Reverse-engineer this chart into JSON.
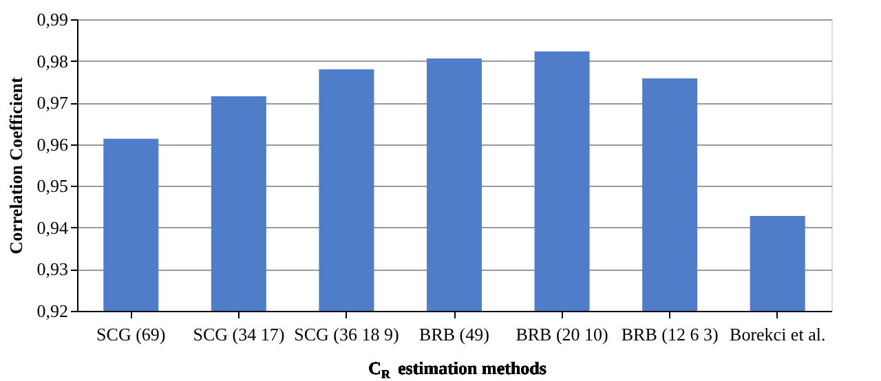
{
  "chart_data": {
    "type": "bar",
    "xlabel": "C$_{R}$ estimation methods",
    "ylabel": "Correlation Coefficient",
    "categories": [
      "SCG (69)",
      "SCG (34 17)",
      "SCG (36 18 9)",
      "BRB (49)",
      "BRB (20 10)",
      "BRB (12 6 3)",
      "Borekci et al."
    ],
    "values": [
      0.9613,
      0.9715,
      0.978,
      0.9806,
      0.9823,
      0.9758,
      0.9428
    ],
    "color": "#4f7dc9",
    "ylim": [
      0.92,
      0.99
    ],
    "yticks": [
      {
        "value": 0.92,
        "label": "0,92"
      },
      {
        "value": 0.93,
        "label": "0,93"
      },
      {
        "value": 0.94,
        "label": "0,94"
      },
      {
        "value": 0.95,
        "label": "0,95"
      },
      {
        "value": 0.96,
        "label": "0,96"
      },
      {
        "value": 0.97,
        "label": "0,97"
      },
      {
        "value": 0.98,
        "label": "0,98"
      },
      {
        "value": 0.99,
        "label": "0,99"
      }
    ],
    "grid": "y"
  }
}
